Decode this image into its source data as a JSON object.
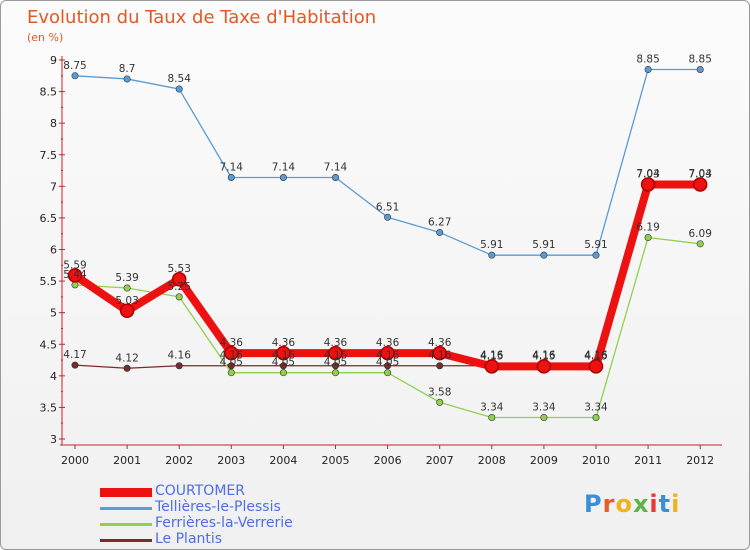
{
  "chart_data": {
    "type": "line",
    "title": "Evolution du Taux de Taxe d'Habitation",
    "subtitle": "(en %)",
    "x": [
      "2000",
      "2001",
      "2002",
      "2003",
      "2004",
      "2005",
      "2006",
      "2007",
      "2008",
      "2009",
      "2010",
      "2011",
      "2012"
    ],
    "ylim": [
      3,
      9
    ],
    "yticks": [
      "3",
      "3.5",
      "4",
      "4.5",
      "5",
      "5.5",
      "6",
      "6.5",
      "7",
      "7.5",
      "8",
      "8.5",
      "9"
    ],
    "grid": false,
    "legend_position": "bottom-left",
    "series": [
      {
        "name": "COURTOMER",
        "color": "#ee1111",
        "values": [
          5.59,
          5.03,
          5.53,
          4.36,
          4.36,
          4.36,
          4.36,
          4.36,
          4.15,
          4.15,
          4.15,
          7.03,
          7.03
        ],
        "labels": [
          "5.59",
          "5.03",
          "5.53",
          "4.36",
          "4.36",
          "4.36",
          "4.36",
          "4.36",
          "4.15",
          "4.15",
          "4.15",
          "7.03",
          "7.03"
        ]
      },
      {
        "name": "Tellières-le-Plessis",
        "color": "#5b9bd5",
        "values": [
          8.75,
          8.7,
          8.54,
          7.14,
          7.14,
          7.14,
          6.51,
          6.27,
          5.91,
          5.91,
          5.91,
          8.85,
          8.85
        ],
        "labels": [
          "8.75",
          "8.7",
          "8.54",
          "7.14",
          "7.14",
          "7.14",
          "6.51",
          "6.27",
          "5.91",
          "5.91",
          "5.91",
          "8.85",
          "8.85"
        ]
      },
      {
        "name": "Ferrières-la-Verrerie",
        "color": "#8fd14f",
        "values": [
          5.44,
          5.39,
          5.25,
          4.05,
          4.05,
          4.05,
          4.05,
          3.58,
          3.34,
          3.34,
          3.34,
          6.19,
          6.09
        ],
        "labels": [
          "5.44",
          "5.39",
          "5.25",
          "4.05",
          "4.05",
          "4.05",
          "4.05",
          "3.58",
          "3.34",
          "3.34",
          "3.34",
          "6.19",
          "6.09"
        ]
      },
      {
        "name": "Le Plantis",
        "color": "#7a2a2a",
        "values": [
          4.17,
          4.12,
          4.16,
          4.16,
          4.16,
          4.16,
          4.16,
          4.16,
          4.16,
          4.16,
          4.16,
          7.04,
          7.04
        ],
        "labels": [
          "4.17",
          "4.12",
          "4.16",
          "4.16",
          "4.16",
          "4.16",
          "4.16",
          "4.16",
          "4.16",
          "4.16",
          "4.16",
          "7.04",
          "7.04"
        ]
      }
    ]
  },
  "logo": {
    "text": "Proxiti",
    "colors": [
      "#3b8fd8",
      "#e85b2a",
      "#f2b21d",
      "#5db443",
      "#e53935",
      "#3b8fd8",
      "#f2b21d"
    ]
  }
}
